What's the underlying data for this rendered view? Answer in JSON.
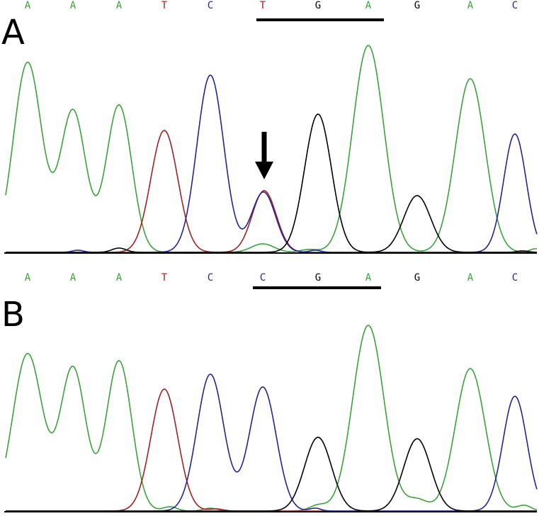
{
  "colors": {
    "A": "#3aa33a",
    "T": "#a52020",
    "C": "#23239a",
    "G": "#000000"
  },
  "panels": [
    {
      "label": "A",
      "bases": [
        "A",
        "A",
        "A",
        "T",
        "C",
        "T",
        "G",
        "A",
        "G",
        "A",
        "C"
      ],
      "underlined_codon": "TGA",
      "arrow_target": "T",
      "trace_note": "heterozygous peak at position 6 (T and C overlap)"
    },
    {
      "label": "B",
      "bases": [
        "A",
        "A",
        "A",
        "T",
        "C",
        "C",
        "G",
        "A",
        "G",
        "A",
        "C"
      ],
      "underlined_codon": "CGA",
      "arrow_target": "",
      "trace_note": ""
    }
  ]
}
